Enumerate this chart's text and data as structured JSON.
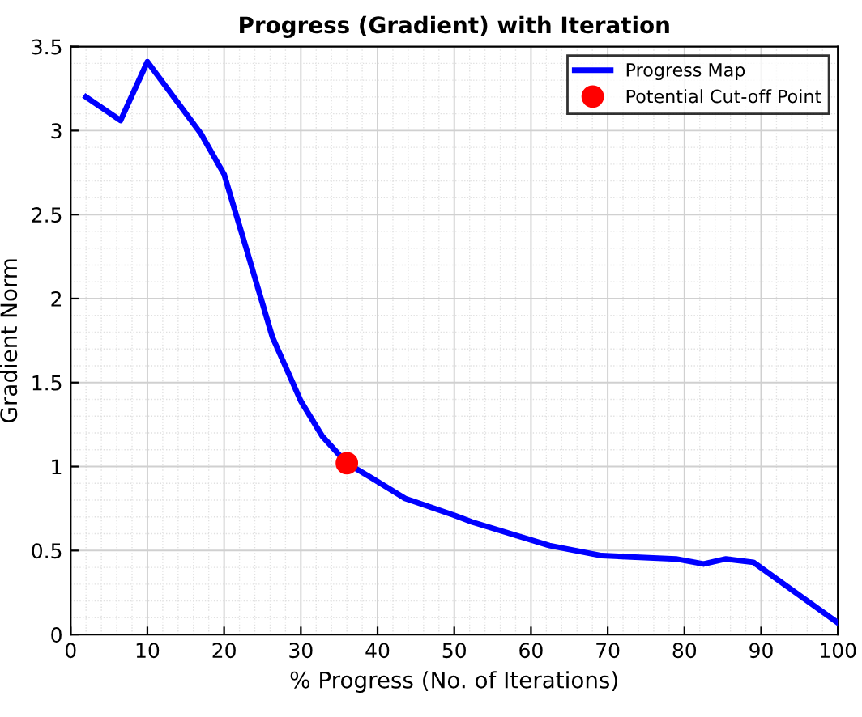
{
  "chart_data": {
    "type": "line",
    "title": "Progress (Gradient) with Iteration",
    "xlabel": "% Progress (No. of Iterations)",
    "ylabel": "Gradient Norm",
    "xlim": [
      0,
      100
    ],
    "xticks": [
      0,
      10,
      20,
      30,
      40,
      50,
      60,
      70,
      80,
      90,
      100
    ],
    "ylim": [
      0,
      3.5
    ],
    "yticks": [
      0,
      0.5,
      1,
      1.5,
      2,
      2.5,
      3,
      3.5
    ],
    "grid": true,
    "legend": "top right",
    "series": [
      {
        "name": "Progress Map",
        "color": "#0000ff",
        "marker": "none",
        "line_style": "solid",
        "x": [
          2,
          6.5,
          10,
          17,
          20,
          23,
          26.3,
          30,
          32.8,
          36,
          39.3,
          43.6,
          50,
          52.3,
          62.4,
          69.2,
          78.9,
          82.5,
          85.4,
          89,
          100
        ],
        "values": [
          3.2,
          3.06,
          3.41,
          2.98,
          2.74,
          2.28,
          1.77,
          1.39,
          1.18,
          1.02,
          0.93,
          0.81,
          0.71,
          0.67,
          0.53,
          0.47,
          0.45,
          0.42,
          0.45,
          0.43,
          0.07
        ]
      },
      {
        "name": "Potential Cut-off Point",
        "type": "scatter",
        "color": "#ff0000",
        "marker": "circle",
        "x": [
          36
        ],
        "values": [
          1.02
        ]
      }
    ]
  }
}
